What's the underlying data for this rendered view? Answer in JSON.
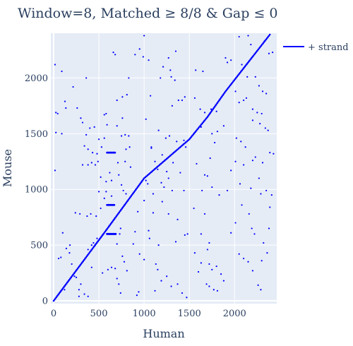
{
  "chart_data": {
    "type": "scatter",
    "title": "Window=8, Matched ≥ 8/8 & Gap ≤ 0",
    "xlabel": "Human",
    "ylabel": "Mouse",
    "xlim": [
      0,
      2450
    ],
    "ylim": [
      0,
      2400
    ],
    "xticks": [
      0,
      500,
      1000,
      1500,
      2000
    ],
    "yticks": [
      0,
      500,
      1000,
      1500,
      2000
    ],
    "grid": true,
    "legend_position": "top-right",
    "colors": {
      "plot_bg": "#e5ecf6",
      "grid": "#ffffff",
      "series": "#0000ff"
    },
    "series": [
      {
        "name": "+ strand",
        "diagonal": [
          [
            0,
            0
          ],
          [
            550,
            600
          ],
          [
            1000,
            1100
          ],
          [
            1500,
            1450
          ],
          [
            1700,
            1650
          ],
          [
            1900,
            1880
          ],
          [
            2400,
            2400
          ]
        ],
        "clusters": [
          {
            "x_range": [
              590,
              680
            ],
            "y": 1330
          },
          {
            "x_range": [
              590,
              670
            ],
            "y": 860
          },
          {
            "x_range": [
              590,
              690
            ],
            "y": 600
          }
        ],
        "points": [
          [
            15,
            2120
          ],
          [
            90,
            2060
          ],
          [
            125,
            1790
          ],
          [
            135,
            1730
          ],
          [
            215,
            1920
          ],
          [
            260,
            1730
          ],
          [
            25,
            1690
          ],
          [
            45,
            1680
          ],
          [
            25,
            1510
          ],
          [
            90,
            1500
          ],
          [
            15,
            1170
          ],
          [
            55,
            380
          ],
          [
            80,
            390
          ],
          [
            140,
            470
          ],
          [
            175,
            430
          ],
          [
            230,
            220
          ],
          [
            250,
            210
          ],
          [
            280,
            100
          ],
          [
            300,
            150
          ],
          [
            340,
            60
          ],
          [
            380,
            40
          ],
          [
            360,
            2000
          ],
          [
            300,
            1640
          ],
          [
            320,
            1600
          ],
          [
            400,
            1550
          ],
          [
            360,
            1490
          ],
          [
            340,
            1390
          ],
          [
            380,
            1360
          ],
          [
            430,
            1330
          ],
          [
            320,
            1220
          ],
          [
            380,
            1220
          ],
          [
            420,
            1240
          ],
          [
            490,
            1250
          ],
          [
            460,
            1220
          ],
          [
            500,
            1450
          ],
          [
            580,
            1680
          ],
          [
            560,
            1670
          ],
          [
            590,
            1580
          ],
          [
            520,
            1110
          ],
          [
            580,
            1070
          ],
          [
            640,
            1080
          ],
          [
            500,
            980
          ],
          [
            580,
            980
          ],
          [
            560,
            920
          ],
          [
            520,
            830
          ],
          [
            470,
            760
          ],
          [
            410,
            780
          ],
          [
            370,
            760
          ],
          [
            290,
            780
          ],
          [
            420,
            500
          ],
          [
            380,
            460
          ],
          [
            420,
            300
          ],
          [
            540,
            250
          ],
          [
            600,
            280
          ],
          [
            640,
            300
          ],
          [
            680,
            290
          ],
          [
            740,
            650
          ],
          [
            730,
            600
          ],
          [
            700,
            510
          ],
          [
            760,
            400
          ],
          [
            780,
            350
          ],
          [
            810,
            270
          ],
          [
            700,
            200
          ],
          [
            720,
            150
          ],
          [
            740,
            70
          ],
          [
            660,
            2230
          ],
          [
            680,
            2210
          ],
          [
            700,
            1800
          ],
          [
            760,
            1830
          ],
          [
            810,
            1850
          ],
          [
            700,
            1570
          ],
          [
            760,
            1640
          ],
          [
            750,
            1480
          ],
          [
            790,
            1490
          ],
          [
            830,
            1480
          ],
          [
            800,
            1360
          ],
          [
            840,
            1380
          ],
          [
            710,
            1240
          ],
          [
            790,
            1250
          ],
          [
            850,
            1200
          ],
          [
            720,
            1130
          ],
          [
            750,
            1040
          ],
          [
            770,
            990
          ],
          [
            800,
            960
          ],
          [
            830,
            2000
          ],
          [
            900,
            2210
          ],
          [
            950,
            2260
          ],
          [
            990,
            2190
          ],
          [
            1000,
            2380
          ],
          [
            1050,
            2160
          ],
          [
            1070,
            1840
          ],
          [
            1020,
            1630
          ],
          [
            1080,
            1380
          ],
          [
            1020,
            1080
          ],
          [
            1040,
            1050
          ],
          [
            1000,
            900
          ],
          [
            930,
            800
          ],
          [
            1100,
            790
          ],
          [
            1050,
            630
          ],
          [
            900,
            620
          ],
          [
            880,
            510
          ],
          [
            950,
            420
          ],
          [
            1000,
            370
          ],
          [
            940,
            80
          ],
          [
            920,
            50
          ],
          [
            1180,
            2000
          ],
          [
            1210,
            2100
          ],
          [
            1270,
            2180
          ],
          [
            1290,
            2070
          ],
          [
            1350,
            2240
          ],
          [
            1300,
            2010
          ],
          [
            1340,
            1980
          ],
          [
            1380,
            1800
          ],
          [
            1310,
            1750
          ],
          [
            1420,
            1800
          ],
          [
            1450,
            1830
          ],
          [
            1160,
            1530
          ],
          [
            1240,
            1460
          ],
          [
            1280,
            1480
          ],
          [
            1360,
            1430
          ],
          [
            1440,
            1440
          ],
          [
            1460,
            1380
          ],
          [
            1200,
            1310
          ],
          [
            1250,
            1160
          ],
          [
            1270,
            1100
          ],
          [
            1320,
            1240
          ],
          [
            1400,
            1150
          ],
          [
            1220,
            1020
          ],
          [
            1310,
            990
          ],
          [
            1440,
            990
          ],
          [
            1200,
            890
          ],
          [
            1270,
            780
          ],
          [
            1370,
            730
          ],
          [
            1160,
            500
          ],
          [
            1350,
            530
          ],
          [
            1450,
            590
          ],
          [
            1480,
            600
          ],
          [
            1150,
            280
          ],
          [
            1250,
            220
          ],
          [
            1300,
            130
          ],
          [
            1370,
            150
          ],
          [
            1420,
            70
          ],
          [
            1470,
            30
          ],
          [
            1570,
            2070
          ],
          [
            1650,
            2060
          ],
          [
            1560,
            1820
          ],
          [
            1620,
            1720
          ],
          [
            1670,
            1690
          ],
          [
            1740,
            1720
          ],
          [
            1760,
            1720
          ],
          [
            1800,
            1700
          ],
          [
            1630,
            1560
          ],
          [
            1750,
            1500
          ],
          [
            1810,
            1520
          ],
          [
            1880,
            1570
          ],
          [
            1780,
            1420
          ],
          [
            1730,
            1280
          ],
          [
            1580,
            1230
          ],
          [
            1670,
            1130
          ],
          [
            1700,
            1120
          ],
          [
            1640,
            990
          ],
          [
            1750,
            1020
          ],
          [
            1830,
            950
          ],
          [
            1550,
            830
          ],
          [
            1670,
            780
          ],
          [
            1630,
            600
          ],
          [
            1720,
            520
          ],
          [
            1700,
            460
          ],
          [
            1720,
            330
          ],
          [
            1750,
            280
          ],
          [
            1800,
            310
          ],
          [
            1850,
            240
          ],
          [
            1880,
            180
          ],
          [
            1560,
            430
          ],
          [
            1630,
            340
          ],
          [
            1600,
            260
          ],
          [
            1690,
            150
          ],
          [
            1720,
            130
          ],
          [
            1770,
            100
          ],
          [
            1810,
            90
          ],
          [
            1900,
            2180
          ],
          [
            1920,
            2140
          ],
          [
            1960,
            2160
          ],
          [
            2050,
            2370
          ],
          [
            2150,
            2380
          ],
          [
            2180,
            2300
          ],
          [
            2080,
            2120
          ],
          [
            2010,
            1880
          ],
          [
            2050,
            1780
          ],
          [
            2100,
            1800
          ],
          [
            2130,
            1820
          ],
          [
            2200,
            1720
          ],
          [
            2250,
            1690
          ],
          [
            2300,
            1680
          ],
          [
            2370,
            1530
          ],
          [
            2020,
            1460
          ],
          [
            2070,
            1430
          ],
          [
            2120,
            1380
          ],
          [
            2010,
            1250
          ],
          [
            2100,
            1220
          ],
          [
            2200,
            1260
          ],
          [
            2310,
            1240
          ],
          [
            1960,
            1170
          ],
          [
            2060,
            1050
          ],
          [
            2180,
            1010
          ],
          [
            1920,
            990
          ],
          [
            2080,
            860
          ],
          [
            2160,
            780
          ],
          [
            2190,
            650
          ],
          [
            2220,
            600
          ],
          [
            2320,
            520
          ],
          [
            2360,
            430
          ],
          [
            2010,
            700
          ],
          [
            1960,
            610
          ],
          [
            2050,
            420
          ],
          [
            2100,
            380
          ],
          [
            2150,
            350
          ],
          [
            2200,
            270
          ],
          [
            2260,
            140
          ],
          [
            2290,
            100
          ],
          [
            2230,
            2010
          ],
          [
            2270,
            1930
          ],
          [
            2310,
            1880
          ],
          [
            2350,
            1860
          ],
          [
            2280,
            1590
          ],
          [
            2340,
            1550
          ],
          [
            2390,
            1330
          ],
          [
            2230,
            1290
          ],
          [
            2290,
            960
          ],
          [
            2350,
            990
          ],
          [
            2410,
            950
          ],
          [
            2380,
            650
          ],
          [
            2300,
            360
          ],
          [
            2420,
            2230
          ],
          [
            2330,
            2330
          ],
          [
            2380,
            2220
          ],
          [
            2140,
            2010
          ],
          [
            2200,
            1620
          ],
          [
            2270,
            1100
          ],
          [
            2390,
            840
          ],
          [
            2430,
            1320
          ],
          [
            100,
            610
          ],
          [
            180,
            500
          ],
          [
            240,
            790
          ],
          [
            200,
            330
          ],
          [
            120,
            100
          ],
          [
            280,
            40
          ],
          [
            450,
            1560
          ],
          [
            480,
            1320
          ],
          [
            530,
            1380
          ],
          [
            560,
            1460
          ],
          [
            620,
            1150
          ],
          [
            640,
            940
          ],
          [
            480,
            560
          ],
          [
            440,
            520
          ],
          [
            1080,
            1370
          ],
          [
            1120,
            1250
          ],
          [
            1150,
            1180
          ],
          [
            1190,
            1060
          ],
          [
            1100,
            960
          ],
          [
            1060,
            560
          ],
          [
            1130,
            330
          ],
          [
            1190,
            180
          ],
          [
            1120,
            90
          ]
        ]
      }
    ]
  }
}
